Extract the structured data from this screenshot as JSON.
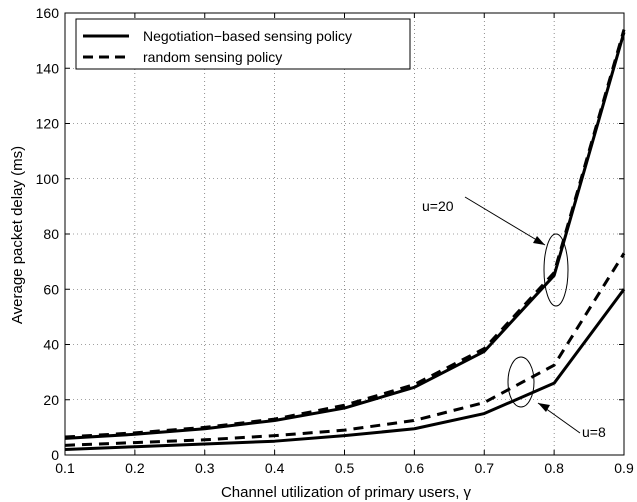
{
  "chart_data": {
    "type": "line",
    "title": "",
    "xlabel": "Channel utilization of primary users, γ",
    "ylabel": "Average packet delay (ms)",
    "xlim": [
      0.1,
      0.9
    ],
    "ylim": [
      0,
      160
    ],
    "x_ticks": [
      0.1,
      0.2,
      0.3,
      0.4,
      0.5,
      0.6,
      0.7,
      0.8,
      0.9
    ],
    "y_ticks": [
      0,
      20,
      40,
      60,
      80,
      100,
      120,
      140,
      160
    ],
    "grid": true,
    "legend_position": "top-left",
    "legend": [
      "Negotiation−based sensing policy",
      "random sensing policy"
    ],
    "annotations": [
      "u=20",
      "u=8"
    ],
    "x": [
      0.1,
      0.2,
      0.3,
      0.4,
      0.5,
      0.6,
      0.7,
      0.8,
      0.9
    ],
    "series": [
      {
        "name": "Negotiation−based sensing policy",
        "group": "u=20",
        "style": "solid",
        "values": [
          6,
          7.5,
          9.5,
          12.5,
          17,
          24.5,
          37.5,
          65,
          153
        ]
      },
      {
        "name": "random sensing policy",
        "group": "u=20",
        "style": "dashed",
        "values": [
          6.5,
          8,
          10,
          13,
          18,
          25.5,
          38.5,
          66,
          154
        ]
      },
      {
        "name": "Negotiation−based sensing policy",
        "group": "u=8",
        "style": "solid",
        "values": [
          2,
          3,
          4,
          5,
          7,
          9.5,
          15,
          26,
          60
        ]
      },
      {
        "name": "random sensing policy",
        "group": "u=8",
        "style": "dashed",
        "values": [
          3.5,
          4.5,
          5.5,
          7,
          9,
          12.5,
          19,
          32.5,
          73
        ]
      }
    ]
  }
}
